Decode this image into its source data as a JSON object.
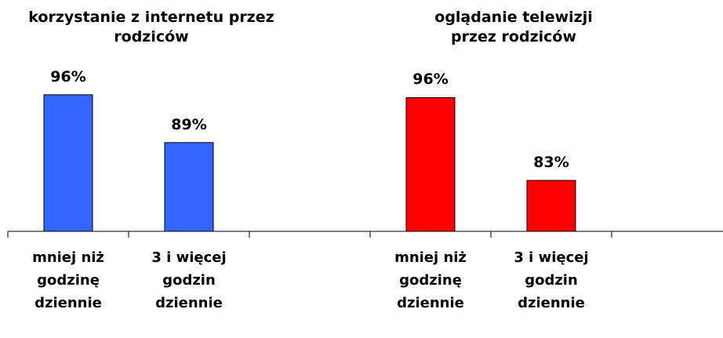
{
  "chart_data": [
    {
      "type": "bar",
      "title": "korzystanie z internetu przez rodziców",
      "categories": [
        "mniej niż godzinę dziennie",
        "3 i więcej godzin dziennie",
        null
      ],
      "values": [
        96,
        89,
        null
      ],
      "value_labels": [
        "96%",
        "89%",
        null
      ],
      "color": "#3366ff",
      "ylim": [
        76,
        100
      ]
    },
    {
      "type": "bar",
      "title": "oglądanie telewizji przez rodziców",
      "categories": [
        "mniej niż godzinę dziennie",
        "3 i więcej godzin dziennie",
        null
      ],
      "values": [
        96,
        83,
        null
      ],
      "value_labels": [
        "96%",
        "83%",
        null
      ],
      "color": "#ff0000",
      "ylim": [
        75,
        100
      ]
    }
  ]
}
